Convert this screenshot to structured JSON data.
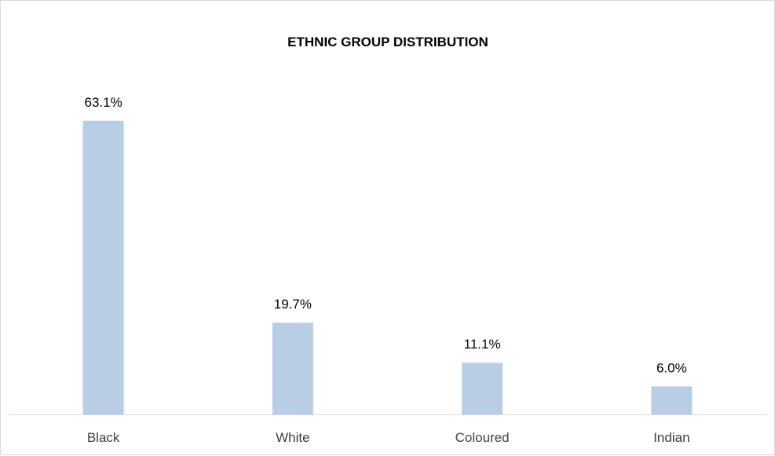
{
  "chart_data": {
    "type": "bar",
    "title": "ETHNIC GROUP DISTRIBUTION",
    "categories": [
      "Black",
      "White",
      "Coloured",
      "Indian"
    ],
    "values": [
      63.1,
      19.7,
      11.1,
      6.0
    ],
    "data_labels": [
      "63.1%",
      "19.7%",
      "11.1%",
      "6.0%"
    ],
    "value_unit": "%",
    "xlabel": "",
    "ylabel": "",
    "ylim": [
      0,
      70
    ],
    "grid": false,
    "legend": "none",
    "bar_color": "#b9cde5",
    "axis_color": "#d9d9d9"
  }
}
